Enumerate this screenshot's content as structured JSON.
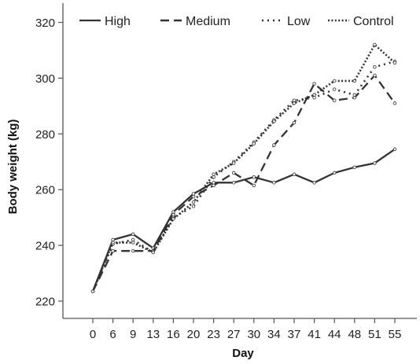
{
  "chart_data": {
    "type": "line",
    "xlabel": "Day",
    "ylabel": "Body weight (kg)",
    "x": [
      0,
      6,
      9,
      13,
      16,
      20,
      23,
      27,
      30,
      34,
      37,
      41,
      44,
      48,
      51,
      55
    ],
    "ylim": [
      215,
      325
    ],
    "yticks": [
      220,
      240,
      260,
      280,
      300,
      320
    ],
    "grid": false,
    "legend_position": "top",
    "series": [
      {
        "name": "High",
        "style": "solid",
        "color": "#333333",
        "values": [
          223.5,
          242,
          244,
          239,
          252,
          258.5,
          262.5,
          262.5,
          264.5,
          262.5,
          265.5,
          262.5,
          266,
          268,
          269.5,
          274.5
        ]
      },
      {
        "name": "Medium",
        "style": "dashed",
        "color": "#333333",
        "values": [
          223.5,
          238,
          238,
          238,
          251,
          257.5,
          261.5,
          266,
          261.5,
          276,
          284,
          298,
          292,
          293,
          301,
          291
        ]
      },
      {
        "name": "Low",
        "style": "sparse-dotted",
        "color": "#333333",
        "values": [
          223.5,
          240.5,
          242,
          237.5,
          250,
          254,
          264.5,
          270,
          277,
          285,
          292,
          293,
          296,
          294,
          304,
          306
        ]
      },
      {
        "name": "Control",
        "style": "dotted",
        "color": "#333333",
        "values": [
          223.5,
          241,
          241,
          237.5,
          249.5,
          255.5,
          265.5,
          269.5,
          276.5,
          284.5,
          291,
          294,
          299,
          299,
          312,
          305.5
        ]
      }
    ]
  }
}
